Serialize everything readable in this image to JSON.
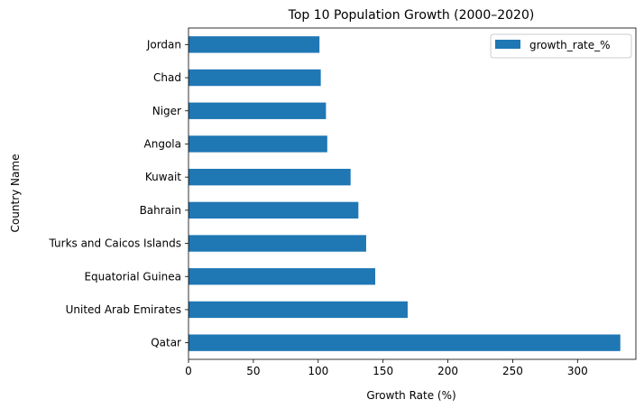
{
  "chart_data": {
    "type": "bar",
    "orientation": "horizontal",
    "title": "Top 10 Population Growth (2000–2020)",
    "xlabel": "Growth Rate (%)",
    "ylabel": "Country Name",
    "xlim": [
      0,
      345
    ],
    "x_ticks": [
      0,
      50,
      100,
      150,
      200,
      250,
      300
    ],
    "bar_color": "#1f77b4",
    "legend": {
      "position": "top-right",
      "entries": [
        "growth_rate_%"
      ]
    },
    "categories": [
      "Qatar",
      "United Arab Emirates",
      "Equatorial Guinea",
      "Turks and Caicos Islands",
      "Bahrain",
      "Kuwait",
      "Angola",
      "Niger",
      "Chad",
      "Jordan"
    ],
    "series": [
      {
        "name": "growth_rate_%",
        "values": [
          333,
          169,
          144,
          137,
          131,
          125,
          107,
          106,
          102,
          101
        ]
      }
    ]
  }
}
